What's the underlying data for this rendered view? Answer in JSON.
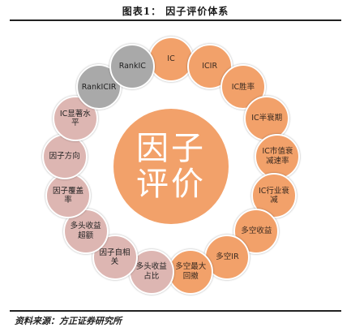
{
  "title": "图表1：   因子评价体系",
  "center_label": "因子评价",
  "source": "资料来源：方正证券研究所",
  "colors": {
    "center": "#f2a16a",
    "orange": "#f2a16a",
    "gray": "#a9a9a9",
    "pink": "#ddb6b2",
    "node_text": "#222222"
  },
  "nodes": [
    {
      "label": "IC",
      "tone": "orange"
    },
    {
      "label": "ICIR",
      "tone": "orange"
    },
    {
      "label": "IC胜率",
      "tone": "orange"
    },
    {
      "label": "IC半衰期",
      "tone": "orange"
    },
    {
      "label": "IC市值衰减速率",
      "tone": "orange"
    },
    {
      "label": "IC行业衰减",
      "tone": "orange"
    },
    {
      "label": "多空收益",
      "tone": "orange"
    },
    {
      "label": "多空IR",
      "tone": "orange"
    },
    {
      "label": "多空最大回撤",
      "tone": "orange"
    },
    {
      "label": "多头收益占比",
      "tone": "pink"
    },
    {
      "label": "因子自相关",
      "tone": "pink"
    },
    {
      "label": "多头收益超额",
      "tone": "pink"
    },
    {
      "label": "因子覆盖率",
      "tone": "pink"
    },
    {
      "label": "因子方向",
      "tone": "pink"
    },
    {
      "label": "IC显著水平",
      "tone": "pink"
    },
    {
      "label": "RankICIR",
      "tone": "gray"
    },
    {
      "label": "RankIC",
      "tone": "gray"
    }
  ]
}
